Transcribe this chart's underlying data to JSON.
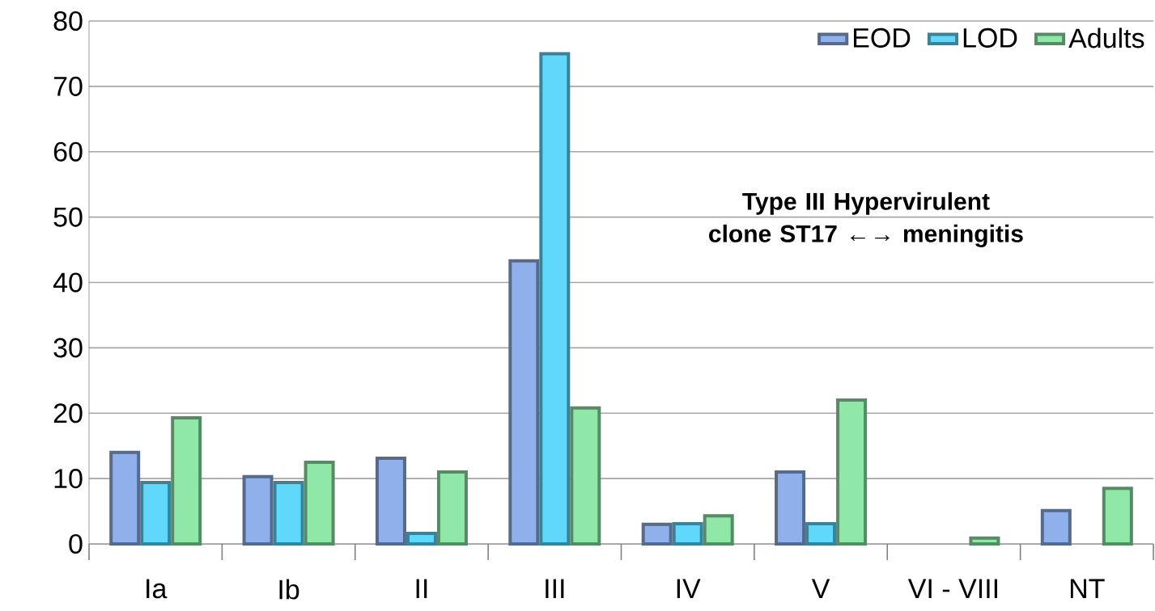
{
  "chart_data": {
    "type": "bar",
    "categories": [
      "Ia",
      "Ib",
      "II",
      "III",
      "IV",
      "V",
      "VI - VIII",
      "NT"
    ],
    "series": [
      {
        "name": "EOD",
        "color": "#8fb0ea",
        "values": [
          14.0,
          10.3,
          13.1,
          43.3,
          3.0,
          11.0,
          null,
          5.1
        ]
      },
      {
        "name": "LOD",
        "color": "#5fd8fb",
        "values": [
          9.4,
          9.4,
          1.6,
          75.0,
          3.1,
          3.1,
          null,
          null
        ]
      },
      {
        "name": "Adults",
        "color": "#8fe8a8",
        "values": [
          19.3,
          12.5,
          11.0,
          20.8,
          4.3,
          22.0,
          0.9,
          8.5
        ]
      }
    ],
    "ylim": [
      0,
      80
    ],
    "yticks": [
      0,
      10,
      20,
      30,
      40,
      50,
      60,
      70,
      80
    ],
    "grid": "y",
    "legend": "top right",
    "annotations": [
      "Type III Hypervirulent clone ST17 ←→ meningitis"
    ]
  }
}
